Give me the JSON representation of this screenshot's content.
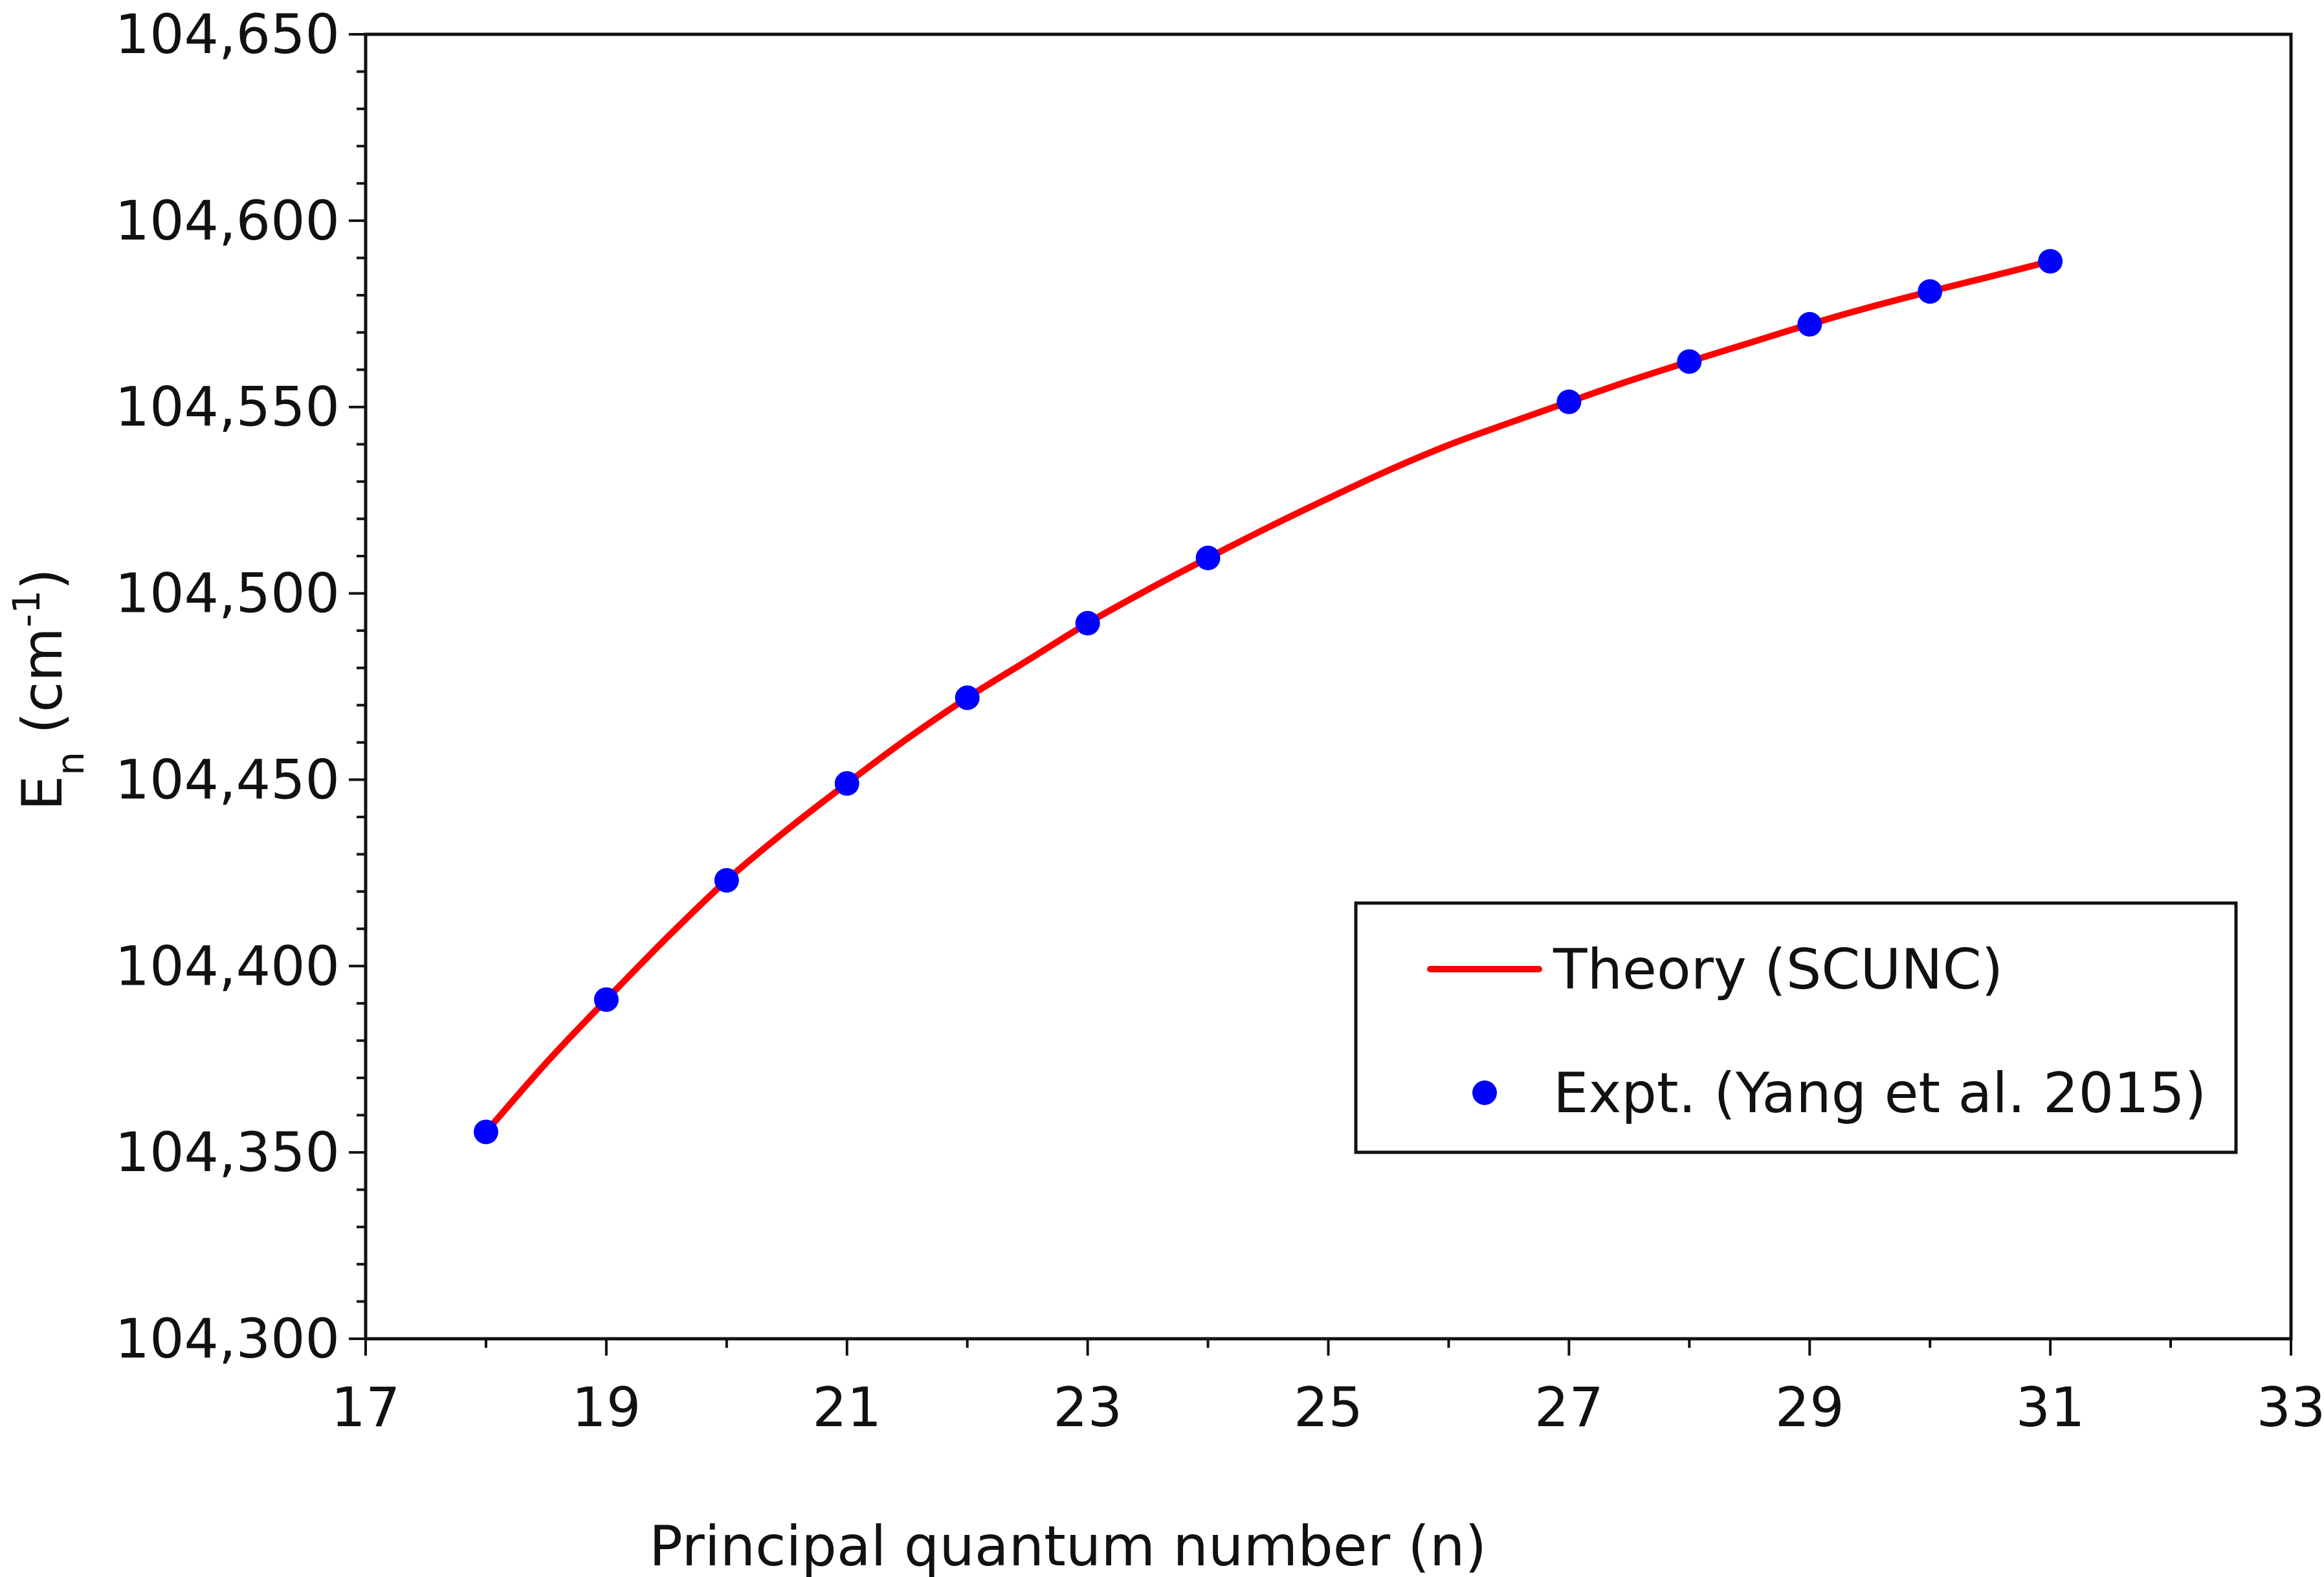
{
  "chart_data": {
    "type": "line",
    "title": "",
    "xlabel": "Principal quantum number (n)",
    "ylabel": {
      "main": "E",
      "subscript": "n",
      "unit_open": " (cm",
      "superscript": "-1",
      "unit_close": ")"
    },
    "xlim": [
      17,
      33
    ],
    "ylim": [
      104300,
      104650
    ],
    "x_ticks": [
      17,
      19,
      21,
      23,
      25,
      27,
      29,
      31,
      33
    ],
    "x_tick_labels": [
      "17",
      "19",
      "21",
      "23",
      "25",
      "27",
      "29",
      "31",
      "33"
    ],
    "y_ticks": [
      104300,
      104350,
      104400,
      104450,
      104500,
      104550,
      104600,
      104650
    ],
    "y_tick_labels": [
      "104,300",
      "104,350",
      "104,400",
      "104,450",
      "104,500",
      "104,550",
      "104,600",
      "104,650"
    ],
    "grid": false,
    "legend_position": "bottom-right",
    "series": [
      {
        "name": "Theory (SCUNC)",
        "kind": "line",
        "color": "#ff0000",
        "x": [
          18,
          18.5,
          19,
          19.5,
          20,
          20.5,
          21,
          21.5,
          22,
          22.5,
          23,
          23.5,
          24,
          24.5,
          25,
          25.5,
          26,
          26.5,
          27,
          27.5,
          28,
          28.5,
          29,
          29.5,
          30,
          30.5,
          31
        ],
        "y": [
          104355.5,
          104374.0,
          104391.0,
          104407.5,
          104423.0,
          104436.5,
          104449.0,
          104461.0,
          104472.0,
          104482.0,
          104492.0,
          104501.0,
          104509.5,
          104517.7,
          104525.5,
          104533.0,
          104539.8,
          104545.7,
          104551.4,
          104557.0,
          104562.2,
          104567.2,
          104572.2,
          104576.8,
          104581.0,
          104585.0,
          104589.1
        ]
      },
      {
        "name": "Expt. (Yang et al. 2015)",
        "kind": "scatter",
        "color": "#0000ff",
        "x": [
          18,
          19,
          20,
          21,
          22,
          23,
          24,
          27,
          28,
          29,
          30,
          31
        ],
        "y": [
          104355.5,
          104391.0,
          104423.0,
          104449.0,
          104472.0,
          104492.0,
          104509.5,
          104551.4,
          104562.2,
          104572.2,
          104581.0,
          104589.1
        ]
      }
    ]
  }
}
